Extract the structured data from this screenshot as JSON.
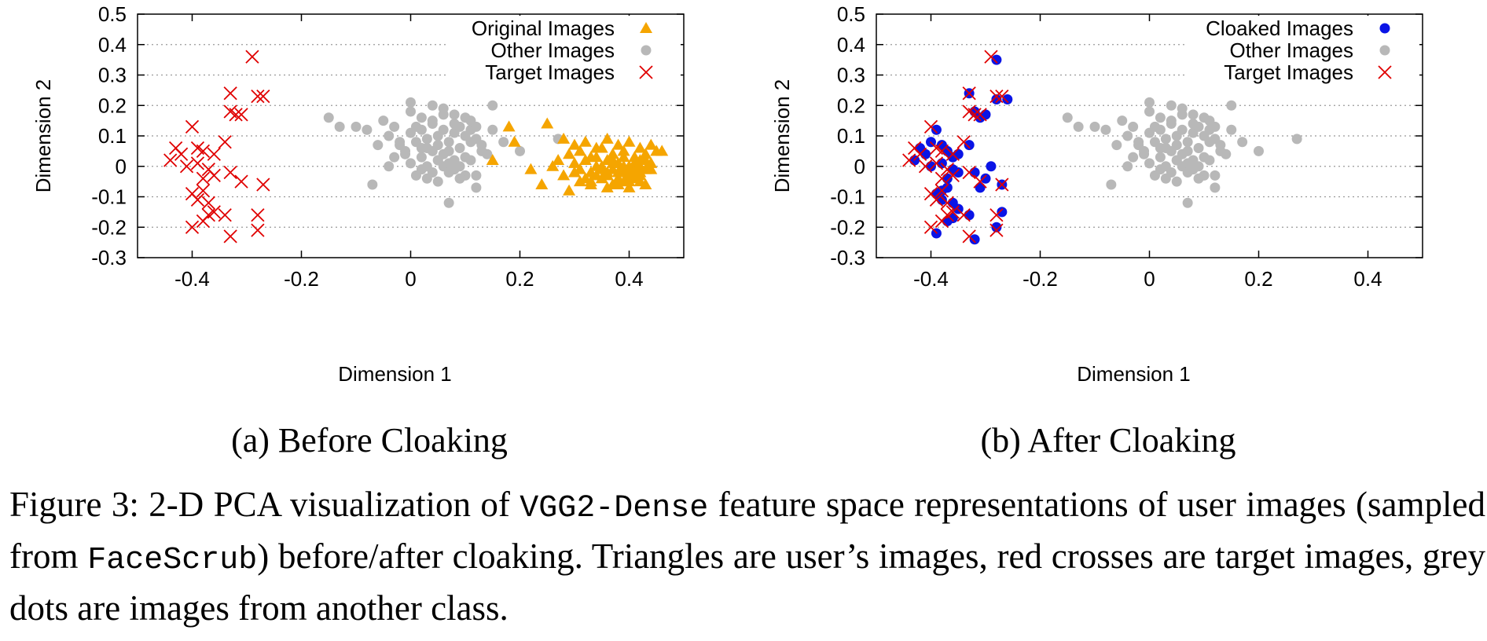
{
  "chart_data": [
    {
      "type": "scatter",
      "xlabel": "Dimension 1",
      "ylabel": "Dimension 2",
      "xlim": [
        -0.5,
        0.5
      ],
      "ylim": [
        -0.3,
        0.5
      ],
      "x_ticks": [
        "-0.4",
        "-0.2",
        "0",
        "0.2",
        "0.4"
      ],
      "y_ticks": [
        "-0.3",
        "-0.2",
        "-0.1",
        "0",
        "0.1",
        "0.2",
        "0.3",
        "0.4",
        "0.5"
      ],
      "grid": "horizontal dotted",
      "legend_position": "top-right",
      "series": [
        {
          "name": "Original Images",
          "marker": "triangle",
          "color": "#f5a500",
          "x": [
            0.18,
            0.25,
            0.19,
            0.15,
            0.22,
            0.28,
            0.3,
            0.32,
            0.34,
            0.36,
            0.38,
            0.4,
            0.42,
            0.44,
            0.46,
            0.29,
            0.31,
            0.33,
            0.35,
            0.37,
            0.39,
            0.41,
            0.43,
            0.45,
            0.27,
            0.26,
            0.3,
            0.32,
            0.34,
            0.36,
            0.38,
            0.4,
            0.42,
            0.44,
            0.31,
            0.33,
            0.35,
            0.37,
            0.39,
            0.41,
            0.43,
            0.28,
            0.3,
            0.32,
            0.34,
            0.36,
            0.38,
            0.4,
            0.42,
            0.44,
            0.33,
            0.35,
            0.37,
            0.39,
            0.41,
            0.43,
            0.36,
            0.38,
            0.4,
            0.42,
            0.34,
            0.37,
            0.39,
            0.41,
            0.43,
            0.35,
            0.38,
            0.4,
            0.42,
            0.24,
            0.29,
            0.31,
            0.33,
            0.36,
            0.38,
            0.4,
            0.42,
            0.37,
            0.39,
            0.41
          ],
          "y": [
            0.13,
            0.14,
            0.08,
            0.02,
            -0.01,
            0.09,
            0.07,
            0.08,
            0.06,
            0.09,
            0.07,
            0.08,
            0.06,
            0.07,
            0.05,
            0.04,
            0.05,
            0.03,
            0.06,
            0.04,
            0.05,
            0.03,
            0.04,
            0.05,
            0.02,
            0.0,
            0.01,
            0.02,
            0.0,
            0.02,
            0.01,
            0.0,
            0.02,
            0.01,
            -0.01,
            -0.02,
            0.0,
            -0.01,
            -0.02,
            0.01,
            -0.01,
            -0.03,
            -0.02,
            -0.04,
            -0.03,
            -0.02,
            -0.04,
            -0.03,
            -0.02,
            -0.01,
            -0.05,
            -0.04,
            -0.06,
            -0.05,
            -0.04,
            -0.06,
            -0.07,
            -0.06,
            -0.07,
            -0.05,
            0.03,
            0.02,
            0.03,
            0.01,
            0.02,
            -0.01,
            -0.02,
            -0.01,
            0.0,
            -0.06,
            -0.08,
            -0.05,
            -0.06,
            -0.03,
            -0.04,
            -0.05,
            -0.03,
            0.01,
            0.0,
            -0.02
          ]
        },
        {
          "name": "Other Images",
          "marker": "circle",
          "color": "#b8b8b8",
          "x": [
            -0.15,
            -0.13,
            -0.1,
            -0.08,
            -0.06,
            -0.05,
            -0.04,
            -0.03,
            -0.02,
            -0.01,
            0.0,
            0.01,
            0.02,
            0.03,
            0.04,
            0.05,
            0.06,
            0.07,
            0.08,
            0.09,
            0.1,
            0.11,
            0.12,
            0.13,
            0.15,
            0.17,
            0.0,
            0.02,
            0.04,
            0.06,
            0.08,
            0.1,
            0.12,
            -0.02,
            0.01,
            0.03,
            0.05,
            0.07,
            0.09,
            0.11,
            0.13,
            -0.03,
            -0.01,
            0.02,
            0.04,
            0.06,
            0.08,
            0.1,
            0.14,
            0.0,
            0.03,
            0.05,
            0.07,
            0.09,
            0.11,
            -0.04,
            0.02,
            0.04,
            0.06,
            0.08,
            0.1,
            0.01,
            0.03,
            0.05,
            0.07,
            0.09,
            0.12,
            0.0,
            0.04,
            0.06,
            0.08,
            0.11,
            0.2,
            0.27,
            -0.07,
            0.07,
            0.12,
            0.05,
            0.15,
            0.02
          ],
          "y": [
            0.16,
            0.13,
            0.13,
            0.12,
            0.07,
            0.15,
            0.1,
            0.13,
            0.08,
            0.05,
            0.11,
            0.13,
            0.12,
            0.09,
            0.14,
            0.1,
            0.12,
            0.08,
            0.11,
            0.13,
            0.1,
            0.12,
            0.09,
            0.07,
            0.12,
            0.08,
            0.18,
            0.16,
            0.15,
            0.17,
            0.14,
            0.16,
            0.13,
            0.07,
            0.08,
            0.06,
            0.07,
            0.05,
            0.06,
            0.08,
            0.05,
            0.03,
            0.04,
            0.03,
            0.05,
            0.04,
            0.02,
            0.03,
            0.04,
            0.01,
            0.0,
            0.02,
            0.01,
            0.0,
            0.02,
            0.0,
            -0.01,
            -0.02,
            0.0,
            -0.01,
            -0.03,
            -0.03,
            -0.04,
            -0.05,
            -0.02,
            -0.04,
            -0.03,
            0.21,
            0.2,
            0.19,
            0.17,
            0.15,
            0.05,
            0.09,
            -0.06,
            -0.12,
            -0.07,
            0.02,
            0.2,
            0.06
          ]
        },
        {
          "name": "Target Images",
          "marker": "cross",
          "color": "#e00000",
          "x": [
            -0.29,
            -0.33,
            -0.28,
            -0.27,
            -0.33,
            -0.32,
            -0.31,
            -0.4,
            -0.43,
            -0.42,
            -0.44,
            -0.39,
            -0.38,
            -0.34,
            -0.36,
            -0.39,
            -0.41,
            -0.37,
            -0.36,
            -0.38,
            -0.33,
            -0.31,
            -0.27,
            -0.4,
            -0.38,
            -0.39,
            -0.37,
            -0.36,
            -0.34,
            -0.28,
            -0.37,
            -0.38,
            -0.4,
            -0.28,
            -0.33
          ],
          "y": [
            0.36,
            0.24,
            0.23,
            0.23,
            0.18,
            0.17,
            0.17,
            0.13,
            0.06,
            0.04,
            0.02,
            0.06,
            0.05,
            0.08,
            0.04,
            0.01,
            0.0,
            -0.01,
            -0.03,
            -0.04,
            -0.02,
            -0.05,
            -0.06,
            -0.09,
            -0.08,
            -0.11,
            -0.12,
            -0.15,
            -0.16,
            -0.16,
            -0.16,
            -0.18,
            -0.2,
            -0.21,
            -0.23
          ]
        }
      ]
    },
    {
      "type": "scatter",
      "xlabel": "Dimension 1",
      "ylabel": "Dimension 2",
      "xlim": [
        -0.5,
        0.5
      ],
      "ylim": [
        -0.3,
        0.5
      ],
      "x_ticks": [
        "-0.4",
        "-0.2",
        "0",
        "0.2",
        "0.4"
      ],
      "y_ticks": [
        "-0.3",
        "-0.2",
        "-0.1",
        "0",
        "0.1",
        "0.2",
        "0.3",
        "0.4",
        "0.5"
      ],
      "grid": "horizontal dotted",
      "legend_position": "top-right",
      "series": [
        {
          "name": "Cloaked Images",
          "marker": "circle",
          "color": "#0a14e6",
          "x": [
            -0.28,
            -0.33,
            -0.28,
            -0.26,
            -0.32,
            -0.31,
            -0.3,
            -0.39,
            -0.42,
            -0.41,
            -0.43,
            -0.38,
            -0.37,
            -0.33,
            -0.35,
            -0.38,
            -0.4,
            -0.36,
            -0.35,
            -0.37,
            -0.32,
            -0.3,
            -0.27,
            -0.39,
            -0.37,
            -0.38,
            -0.36,
            -0.35,
            -0.33,
            -0.27,
            -0.36,
            -0.37,
            -0.39,
            -0.28,
            -0.32,
            -0.38,
            -0.36,
            -0.31,
            -0.29,
            -0.4
          ],
          "y": [
            0.35,
            0.24,
            0.22,
            0.22,
            0.18,
            0.16,
            0.17,
            0.12,
            0.06,
            0.04,
            0.02,
            0.07,
            0.05,
            0.07,
            0.04,
            0.01,
            0.0,
            -0.01,
            -0.02,
            -0.04,
            -0.02,
            -0.04,
            -0.06,
            -0.09,
            -0.07,
            -0.11,
            -0.12,
            -0.14,
            -0.16,
            -0.15,
            -0.17,
            -0.18,
            -0.22,
            -0.2,
            -0.24,
            -0.08,
            0.03,
            -0.07,
            0.0,
            0.08
          ]
        },
        {
          "name": "Other Images",
          "marker": "circle",
          "color": "#b8b8b8",
          "x": [
            -0.15,
            -0.13,
            -0.1,
            -0.08,
            -0.06,
            -0.05,
            -0.04,
            -0.03,
            -0.02,
            -0.01,
            0.0,
            0.01,
            0.02,
            0.03,
            0.04,
            0.05,
            0.06,
            0.07,
            0.08,
            0.09,
            0.1,
            0.11,
            0.12,
            0.13,
            0.15,
            0.17,
            0.0,
            0.02,
            0.04,
            0.06,
            0.08,
            0.1,
            0.12,
            -0.02,
            0.01,
            0.03,
            0.05,
            0.07,
            0.09,
            0.11,
            0.13,
            -0.03,
            -0.01,
            0.02,
            0.04,
            0.06,
            0.08,
            0.1,
            0.14,
            0.0,
            0.03,
            0.05,
            0.07,
            0.09,
            0.11,
            -0.04,
            0.02,
            0.04,
            0.06,
            0.08,
            0.1,
            0.01,
            0.03,
            0.05,
            0.07,
            0.09,
            0.12,
            0.0,
            0.04,
            0.06,
            0.08,
            0.11,
            0.2,
            0.27,
            -0.07,
            0.07,
            0.12,
            0.05,
            0.15,
            0.02
          ],
          "y": [
            0.16,
            0.13,
            0.13,
            0.12,
            0.07,
            0.15,
            0.1,
            0.13,
            0.08,
            0.05,
            0.11,
            0.13,
            0.12,
            0.09,
            0.14,
            0.1,
            0.12,
            0.08,
            0.11,
            0.13,
            0.1,
            0.12,
            0.09,
            0.07,
            0.12,
            0.08,
            0.18,
            0.16,
            0.15,
            0.17,
            0.14,
            0.16,
            0.13,
            0.07,
            0.08,
            0.06,
            0.07,
            0.05,
            0.06,
            0.08,
            0.05,
            0.03,
            0.04,
            0.03,
            0.05,
            0.04,
            0.02,
            0.03,
            0.04,
            0.01,
            0.0,
            0.02,
            0.01,
            0.0,
            0.02,
            0.0,
            -0.01,
            -0.02,
            0.0,
            -0.01,
            -0.03,
            -0.03,
            -0.04,
            -0.05,
            -0.02,
            -0.04,
            -0.03,
            0.21,
            0.2,
            0.19,
            0.17,
            0.15,
            0.05,
            0.09,
            -0.06,
            -0.12,
            -0.07,
            0.02,
            0.2,
            0.06
          ]
        },
        {
          "name": "Target Images",
          "marker": "cross",
          "color": "#e00000",
          "x": [
            -0.29,
            -0.33,
            -0.28,
            -0.27,
            -0.33,
            -0.32,
            -0.31,
            -0.4,
            -0.43,
            -0.42,
            -0.44,
            -0.39,
            -0.38,
            -0.34,
            -0.36,
            -0.39,
            -0.41,
            -0.37,
            -0.36,
            -0.38,
            -0.33,
            -0.31,
            -0.27,
            -0.4,
            -0.38,
            -0.39,
            -0.37,
            -0.36,
            -0.34,
            -0.28,
            -0.37,
            -0.38,
            -0.4,
            -0.28,
            -0.33
          ],
          "y": [
            0.36,
            0.24,
            0.23,
            0.23,
            0.18,
            0.17,
            0.17,
            0.13,
            0.06,
            0.04,
            0.02,
            0.06,
            0.05,
            0.08,
            0.04,
            0.01,
            0.0,
            -0.01,
            -0.03,
            -0.04,
            -0.02,
            -0.05,
            -0.06,
            -0.09,
            -0.08,
            -0.11,
            -0.12,
            -0.15,
            -0.16,
            -0.16,
            -0.16,
            -0.18,
            -0.2,
            -0.21,
            -0.23
          ]
        }
      ]
    }
  ],
  "subcaptions": {
    "a": "(a) Before Cloaking",
    "b": "(b) After Cloaking"
  },
  "caption": {
    "part1": "Figure 3: 2-D PCA visualization of ",
    "code1": "VGG2-Dense",
    "part2": " feature space representations of user images (sampled from ",
    "code2": "FaceScrub",
    "part3": ") before/after cloaking. Triangles are user’s images, red crosses are target images, grey dots are images from another class."
  }
}
